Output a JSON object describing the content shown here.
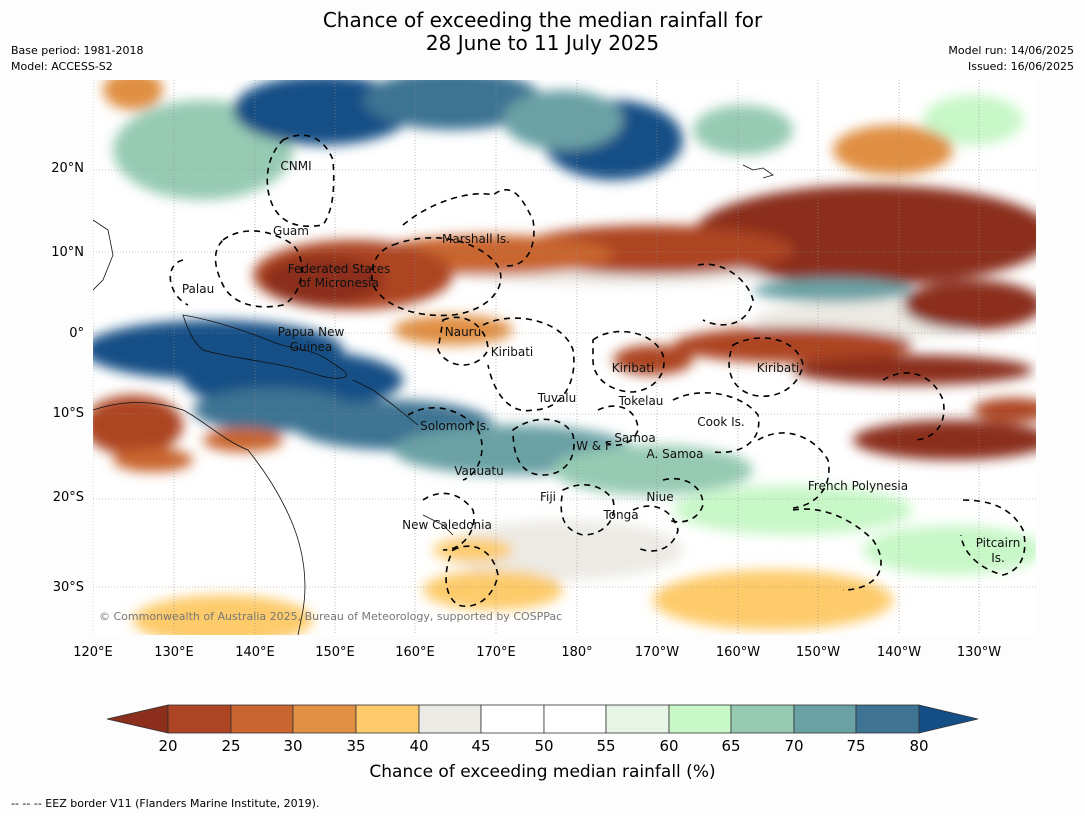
{
  "title": {
    "line1": "Chance of exceeding the median rainfall for",
    "line2": "28 June to 11 July 2025"
  },
  "meta": {
    "base_period": "Base period: 1981-2018",
    "model": "Model: ACCESS-S2",
    "model_run": "Model run: 14/06/2025",
    "issued": "Issued: 16/06/2025"
  },
  "lat_labels": [
    "20°N",
    "10°N",
    "0°",
    "10°S",
    "20°S",
    "30°S"
  ],
  "lon_labels": [
    "120°E",
    "130°E",
    "140°E",
    "150°E",
    "160°E",
    "170°E",
    "180°",
    "170°W",
    "160°W",
    "150°W",
    "140°W",
    "130°W"
  ],
  "regions": [
    "CNMI",
    "Guam",
    "Marshall Is.",
    "Federated States",
    "of Micronesia",
    "Palau",
    "Papua New",
    "Guinea",
    "Nauru",
    "Kiribati",
    "Kiribati",
    "Kiribati",
    "Tuvalu",
    "Tokelau",
    "Cook Is.",
    "Solomon Is.",
    "Samoa",
    "W & F",
    "A. Samoa",
    "Vanuatu",
    "Fiji",
    "Niue",
    "Tonga",
    "French Polynesia",
    "New Caledonia",
    "Pitcairn",
    "Is."
  ],
  "copyright": "© Commonwealth of Australia 2025, Bureau of Meteorology, supported by COSPPac",
  "colorbar": {
    "ticks": [
      "20",
      "25",
      "30",
      "35",
      "40",
      "45",
      "50",
      "55",
      "60",
      "65",
      "70",
      "75",
      "80"
    ],
    "colors": [
      "#8b2e1c",
      "#ad4424",
      "#c9652f",
      "#e08f43",
      "#fdcb6a",
      "#eceae4",
      "#ffffff",
      "#ffffff",
      "#e7f5e7",
      "#c8f7c8",
      "#96cab3",
      "#6aa1a5",
      "#3e7393",
      "#134f86"
    ],
    "title": "Chance of exceeding median rainfall (%)"
  },
  "footer": "--  --  -- EEZ border V11 (Flanders Marine Institute, 2019)."
}
